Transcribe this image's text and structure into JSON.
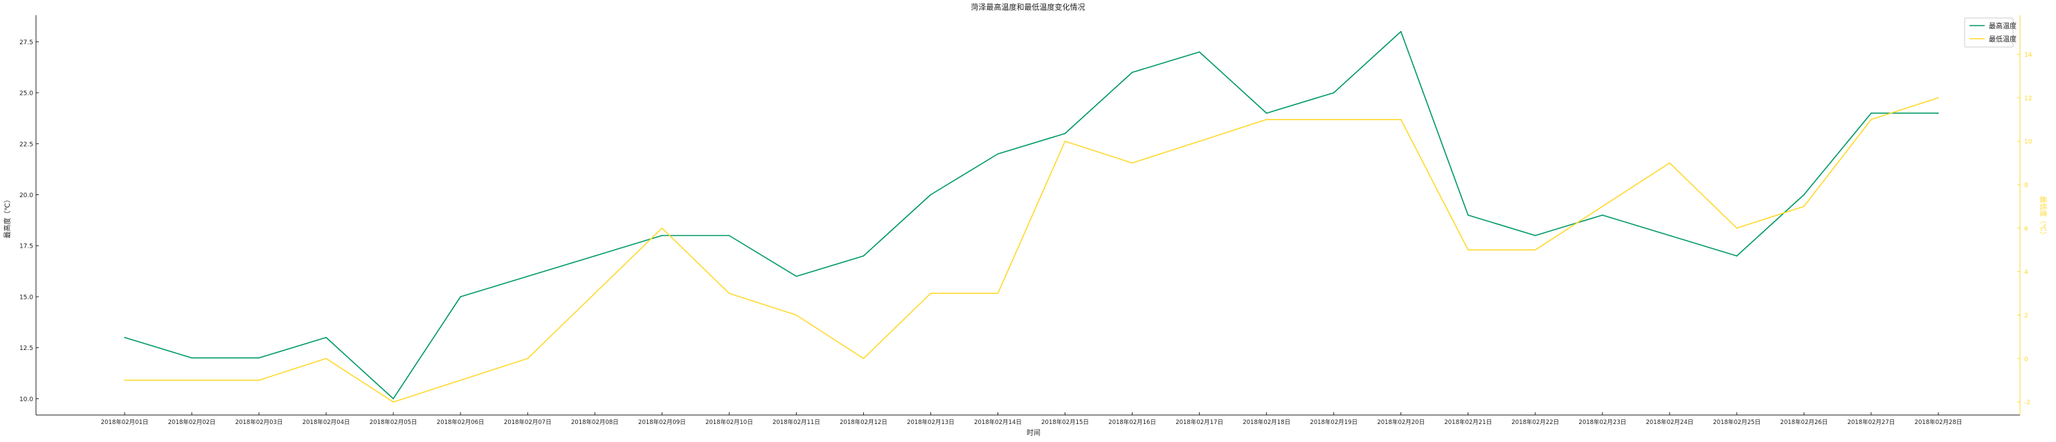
{
  "chart_data": {
    "type": "line",
    "title": "菏泽最高温度和最低温度变化情况",
    "xlabel": "时间",
    "ylabel_left": "最高度（℃）",
    "ylabel_right": "最低度（℃）",
    "categories": [
      "2018年02月01日",
      "2018年02月02日",
      "2018年02月03日",
      "2018年02月04日",
      "2018年02月05日",
      "2018年02月06日",
      "2018年02月07日",
      "2018年02月08日",
      "2018年02月09日",
      "2018年02月10日",
      "2018年02月11日",
      "2018年02月12日",
      "2018年02月13日",
      "2018年02月14日",
      "2018年02月15日",
      "2018年02月16日",
      "2018年02月17日",
      "2018年02月18日",
      "2018年02月19日",
      "2018年02月20日",
      "2018年02月21日",
      "2018年02月22日",
      "2018年02月23日",
      "2018年02月24日",
      "2018年02月25日",
      "2018年02月26日",
      "2018年02月27日",
      "2018年02月28日"
    ],
    "left_axis": {
      "ylim": [
        9.2,
        28.8
      ],
      "ticks": [
        "10.0",
        "12.5",
        "15.0",
        "17.5",
        "20.0",
        "22.5",
        "25.0",
        "27.5"
      ],
      "tick_values": [
        10,
        12.5,
        15,
        17.5,
        20,
        22.5,
        25,
        27.5
      ],
      "color": "#009966"
    },
    "right_axis": {
      "ylim": [
        -2.6,
        15.8
      ],
      "ticks": [
        "-2",
        "0",
        "2",
        "4",
        "6",
        "8",
        "10",
        "12",
        "14"
      ],
      "tick_values": [
        -2,
        0,
        2,
        4,
        6,
        8,
        10,
        12,
        14
      ],
      "color": "#ffd92f"
    },
    "series": [
      {
        "name": "最高温度",
        "axis": "left",
        "color": "#009966",
        "values": [
          13,
          12,
          12,
          13,
          10,
          15,
          16,
          17,
          18,
          18,
          16,
          17,
          20,
          22,
          23,
          26,
          27,
          24,
          25,
          28,
          19,
          18,
          19,
          18,
          17,
          20,
          24,
          24
        ]
      },
      {
        "name": "最低温度",
        "axis": "right",
        "color": "#ffd92f",
        "values": [
          -1,
          -1,
          -1,
          0,
          -2,
          -1,
          0,
          3,
          6,
          3,
          2,
          0,
          3,
          3,
          10,
          9,
          10,
          11,
          11,
          11,
          5,
          5,
          7,
          9,
          6,
          7,
          11,
          12
        ]
      }
    ],
    "legend_position": "top-right",
    "grid": false
  }
}
